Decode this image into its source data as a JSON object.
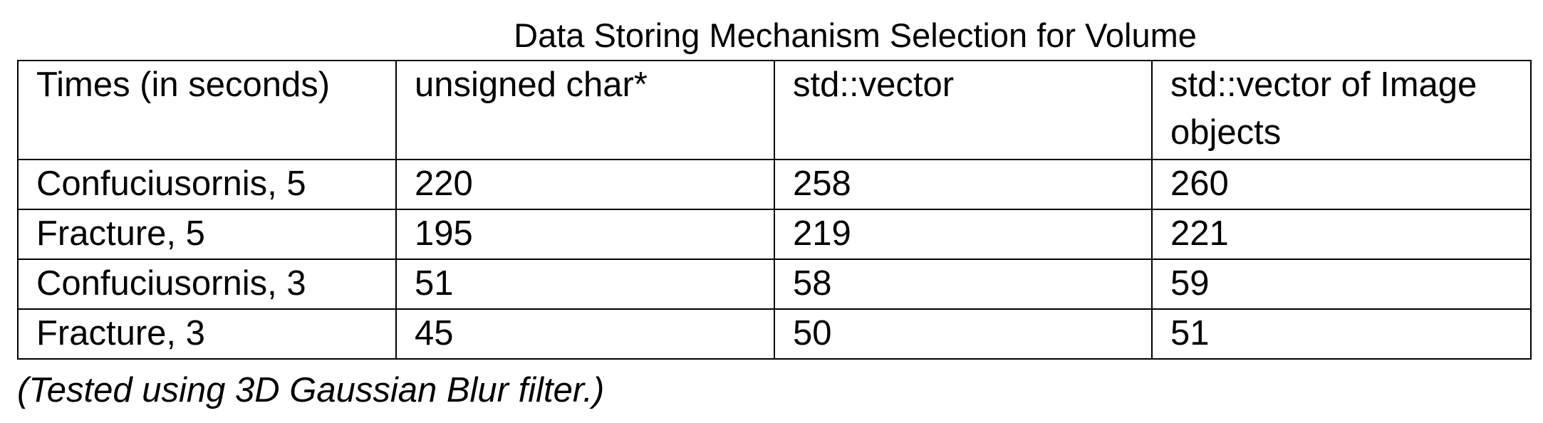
{
  "caption": "Data Storing Mechanism Selection for Volume",
  "table": {
    "headers": [
      "Times (in seconds)",
      "unsigned char*",
      "std::vector",
      "std::vector of Image objects"
    ],
    "rows": [
      [
        "Confuciusornis, 5",
        "220",
        "258",
        "260"
      ],
      [
        "Fracture, 5",
        "195",
        "219",
        "221"
      ],
      [
        "Confuciusornis, 3",
        "51",
        "58",
        "59"
      ],
      [
        "Fracture, 3",
        "45",
        "50",
        "51"
      ]
    ]
  },
  "note": "(Tested using 3D Gaussian Blur filter.)"
}
